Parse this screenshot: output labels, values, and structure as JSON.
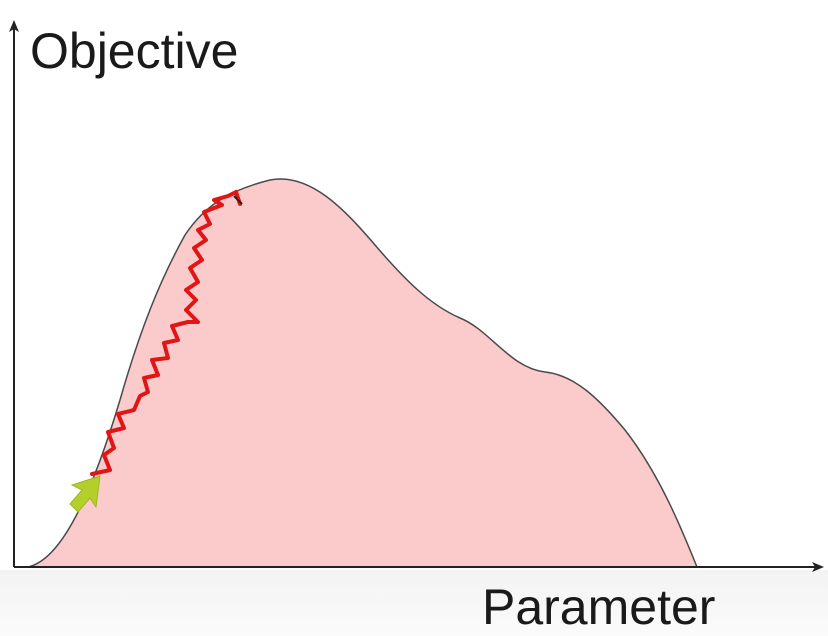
{
  "diagram": {
    "y_axis_label": "Objective",
    "x_axis_label": "Parameter",
    "colors": {
      "curve_fill": "#fbcaca",
      "curve_stroke": "#4a4a4a",
      "path_stroke": "#e01515",
      "start_arrow": "#b5cf2a",
      "axis": "#222222"
    }
  }
}
